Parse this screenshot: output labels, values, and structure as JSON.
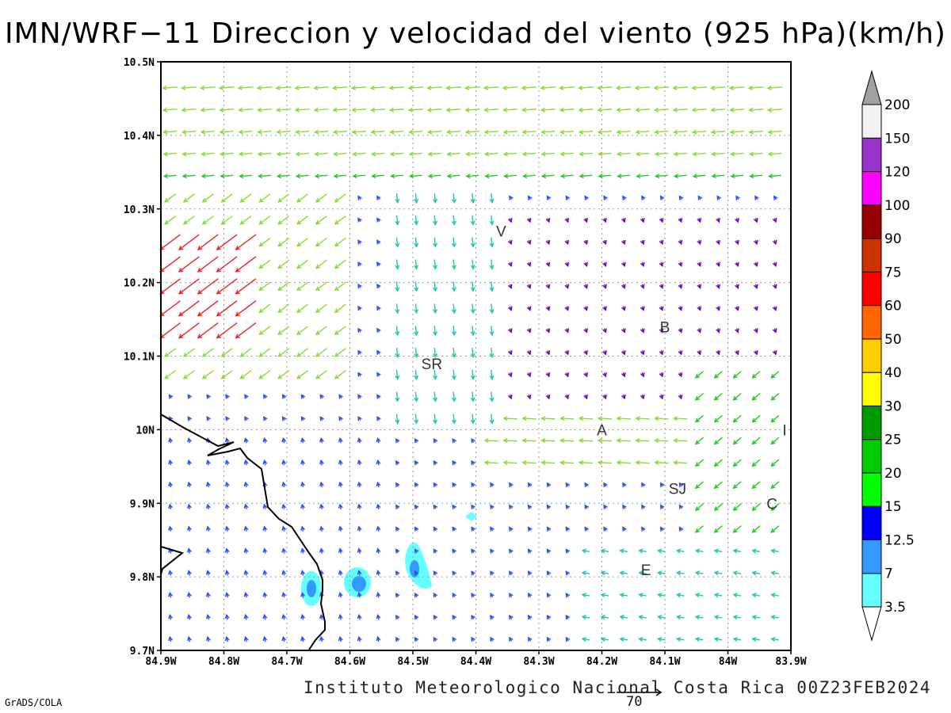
{
  "title": "IMN/WRF−11 Direccion y velocidad del viento (925 hPa)(km/h)",
  "credit": "Instituto Meteorologico Nacional Costa Rica 00Z23FEB2024",
  "software": "GrADS/COLA",
  "reference_vector_value": "70",
  "map": {
    "lon_range": [
      -84.9,
      -83.9
    ],
    "lat_range": [
      9.7,
      10.5
    ],
    "lat_ticks": [
      "9.7N",
      "9.8N",
      "9.9N",
      "10N",
      "10.1N",
      "10.2N",
      "10.3N",
      "10.4N",
      "10.5N"
    ],
    "lon_ticks": [
      "84.9W",
      "84.8W",
      "84.7W",
      "84.6W",
      "84.5W",
      "84.4W",
      "84.3W",
      "84.2W",
      "84.1W",
      "84W",
      "83.9W"
    ],
    "grid": "dotted",
    "places": [
      {
        "label": "V",
        "lon": -84.36,
        "lat": 10.27
      },
      {
        "label": "SR",
        "lon": -84.47,
        "lat": 10.09
      },
      {
        "label": "B",
        "lon": -84.1,
        "lat": 10.14
      },
      {
        "label": "A",
        "lon": -84.2,
        "lat": 10.0
      },
      {
        "label": "SJ",
        "lon": -84.08,
        "lat": 9.92
      },
      {
        "label": "C",
        "lon": -83.93,
        "lat": 9.9
      },
      {
        "label": "E",
        "lon": -84.13,
        "lat": 9.81
      },
      {
        "label": "I",
        "lon": -83.91,
        "lat": 10.0
      }
    ]
  },
  "colorbar": {
    "levels": [
      "3.5",
      "7",
      "12.5",
      "15",
      "20",
      "25",
      "30",
      "40",
      "50",
      "60",
      "75",
      "90",
      "100",
      "120",
      "150",
      "200"
    ],
    "colors": [
      "#66ffff",
      "#3399ff",
      "#0000ff",
      "#00ff00",
      "#00cc00",
      "#009900",
      "#ffff00",
      "#ffcc00",
      "#ff6600",
      "#ff0000",
      "#cc3300",
      "#990000",
      "#ff00ff",
      "#9933cc",
      "#f2f2f2",
      "#a0a0a0"
    ]
  }
}
